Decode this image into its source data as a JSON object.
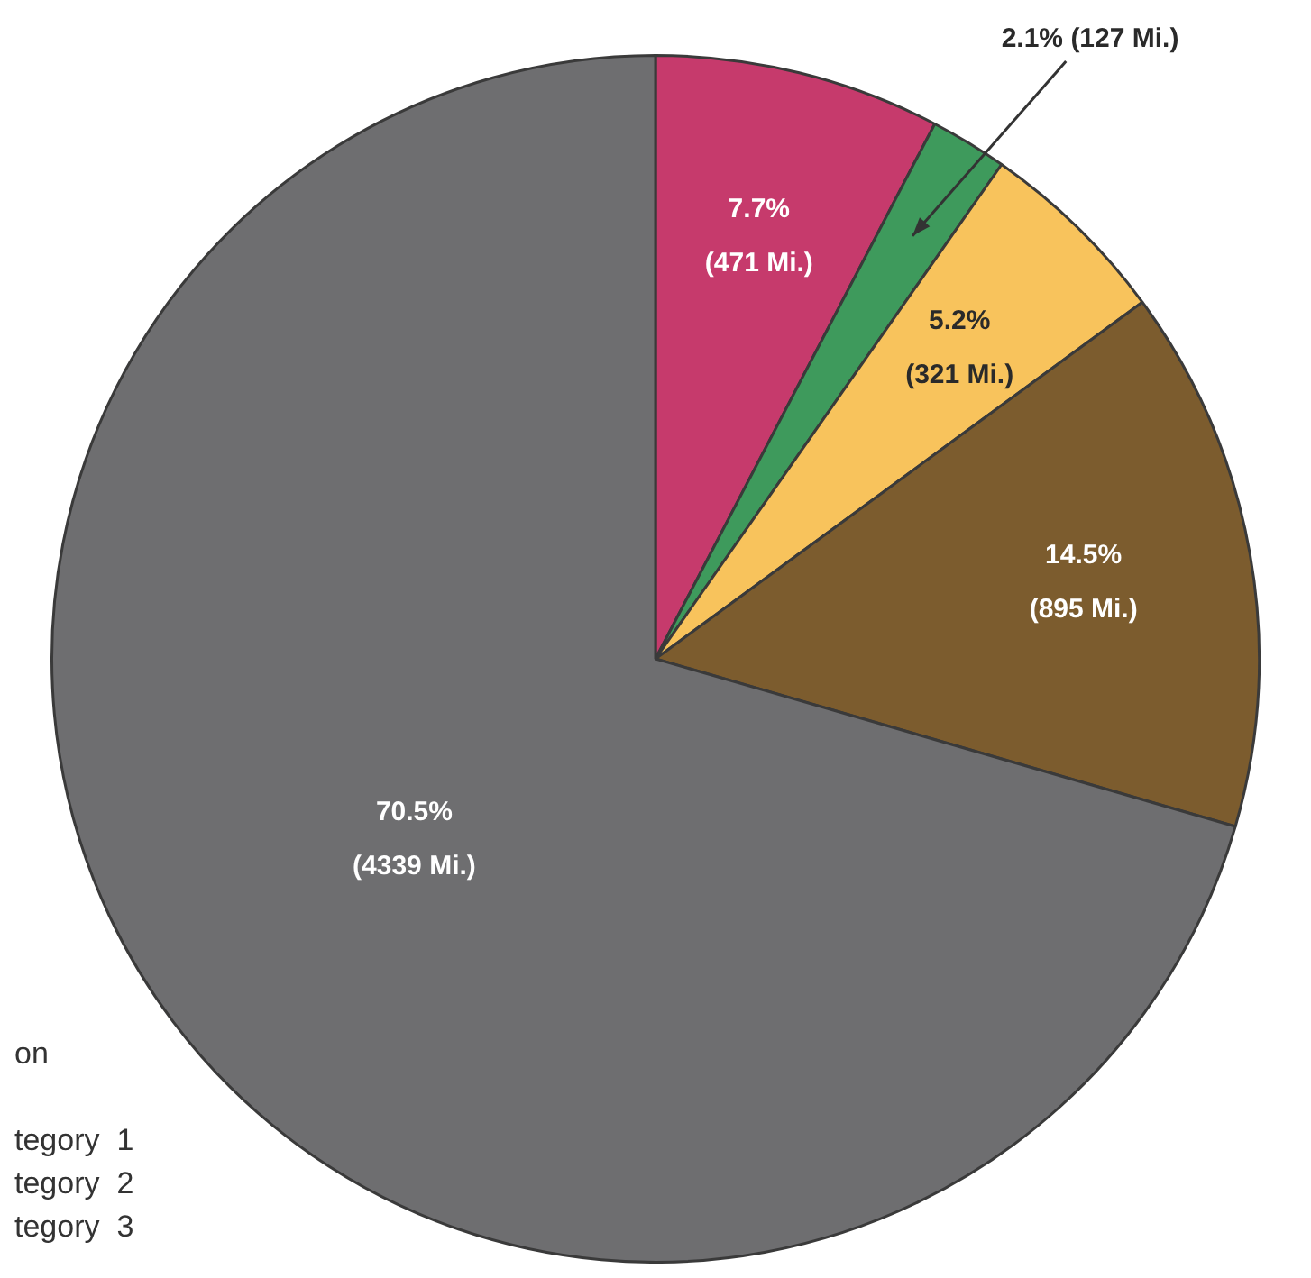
{
  "chart_data": {
    "type": "pie",
    "categories": [
      null,
      null,
      null,
      null,
      null
    ],
    "values": [
      471,
      127,
      321,
      895,
      4339
    ],
    "colors": [
      "#c63a6c",
      "#3e9a5c",
      "#f8c35c",
      "#7c5c2e",
      "#6e6e70"
    ],
    "value_labels": [
      "7.7% (471 Mi.)",
      "2.1% (127 Mi.)",
      "5.2% (321 Mi.)",
      "14.5% (895 Mi.)",
      "70.5% (4339 Mi.)"
    ],
    "annotations": [
      "on",
      "tegory  1",
      "tegory  2",
      "tegory  3"
    ]
  }
}
